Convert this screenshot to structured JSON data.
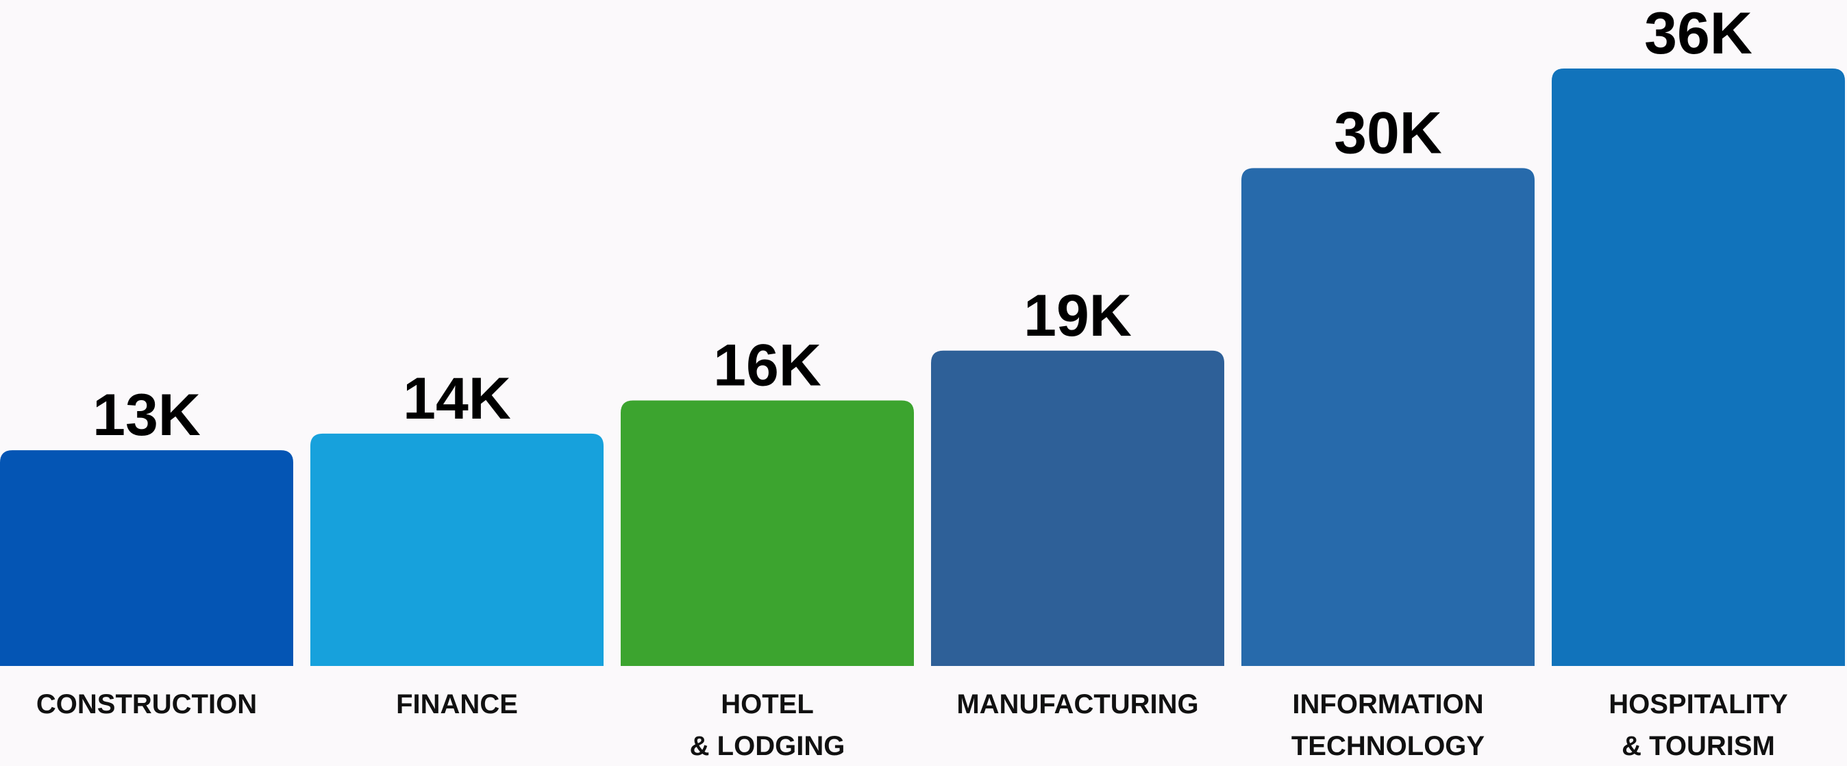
{
  "chart_data": {
    "type": "bar",
    "categories": [
      [
        "CONSTRUCTION"
      ],
      [
        "FINANCE"
      ],
      [
        "HOTEL",
        "& LODGING"
      ],
      [
        "MANUFACTURING"
      ],
      [
        "INFORMATION",
        "TECHNOLOGY"
      ],
      [
        "HOSPITALITY",
        "& TOURISM"
      ]
    ],
    "values": [
      13,
      14,
      16,
      19,
      30,
      36
    ],
    "value_labels": [
      "13K",
      "14K",
      "16K",
      "19K",
      "30K",
      "36K"
    ],
    "colors": [
      "#0455b4",
      "#17a1dc",
      "#3ca42f",
      "#2e6098",
      "#276aab",
      "#1173bb"
    ],
    "ylim": [
      0,
      36
    ],
    "grid": false,
    "title": "",
    "xlabel": "",
    "ylabel": ""
  }
}
